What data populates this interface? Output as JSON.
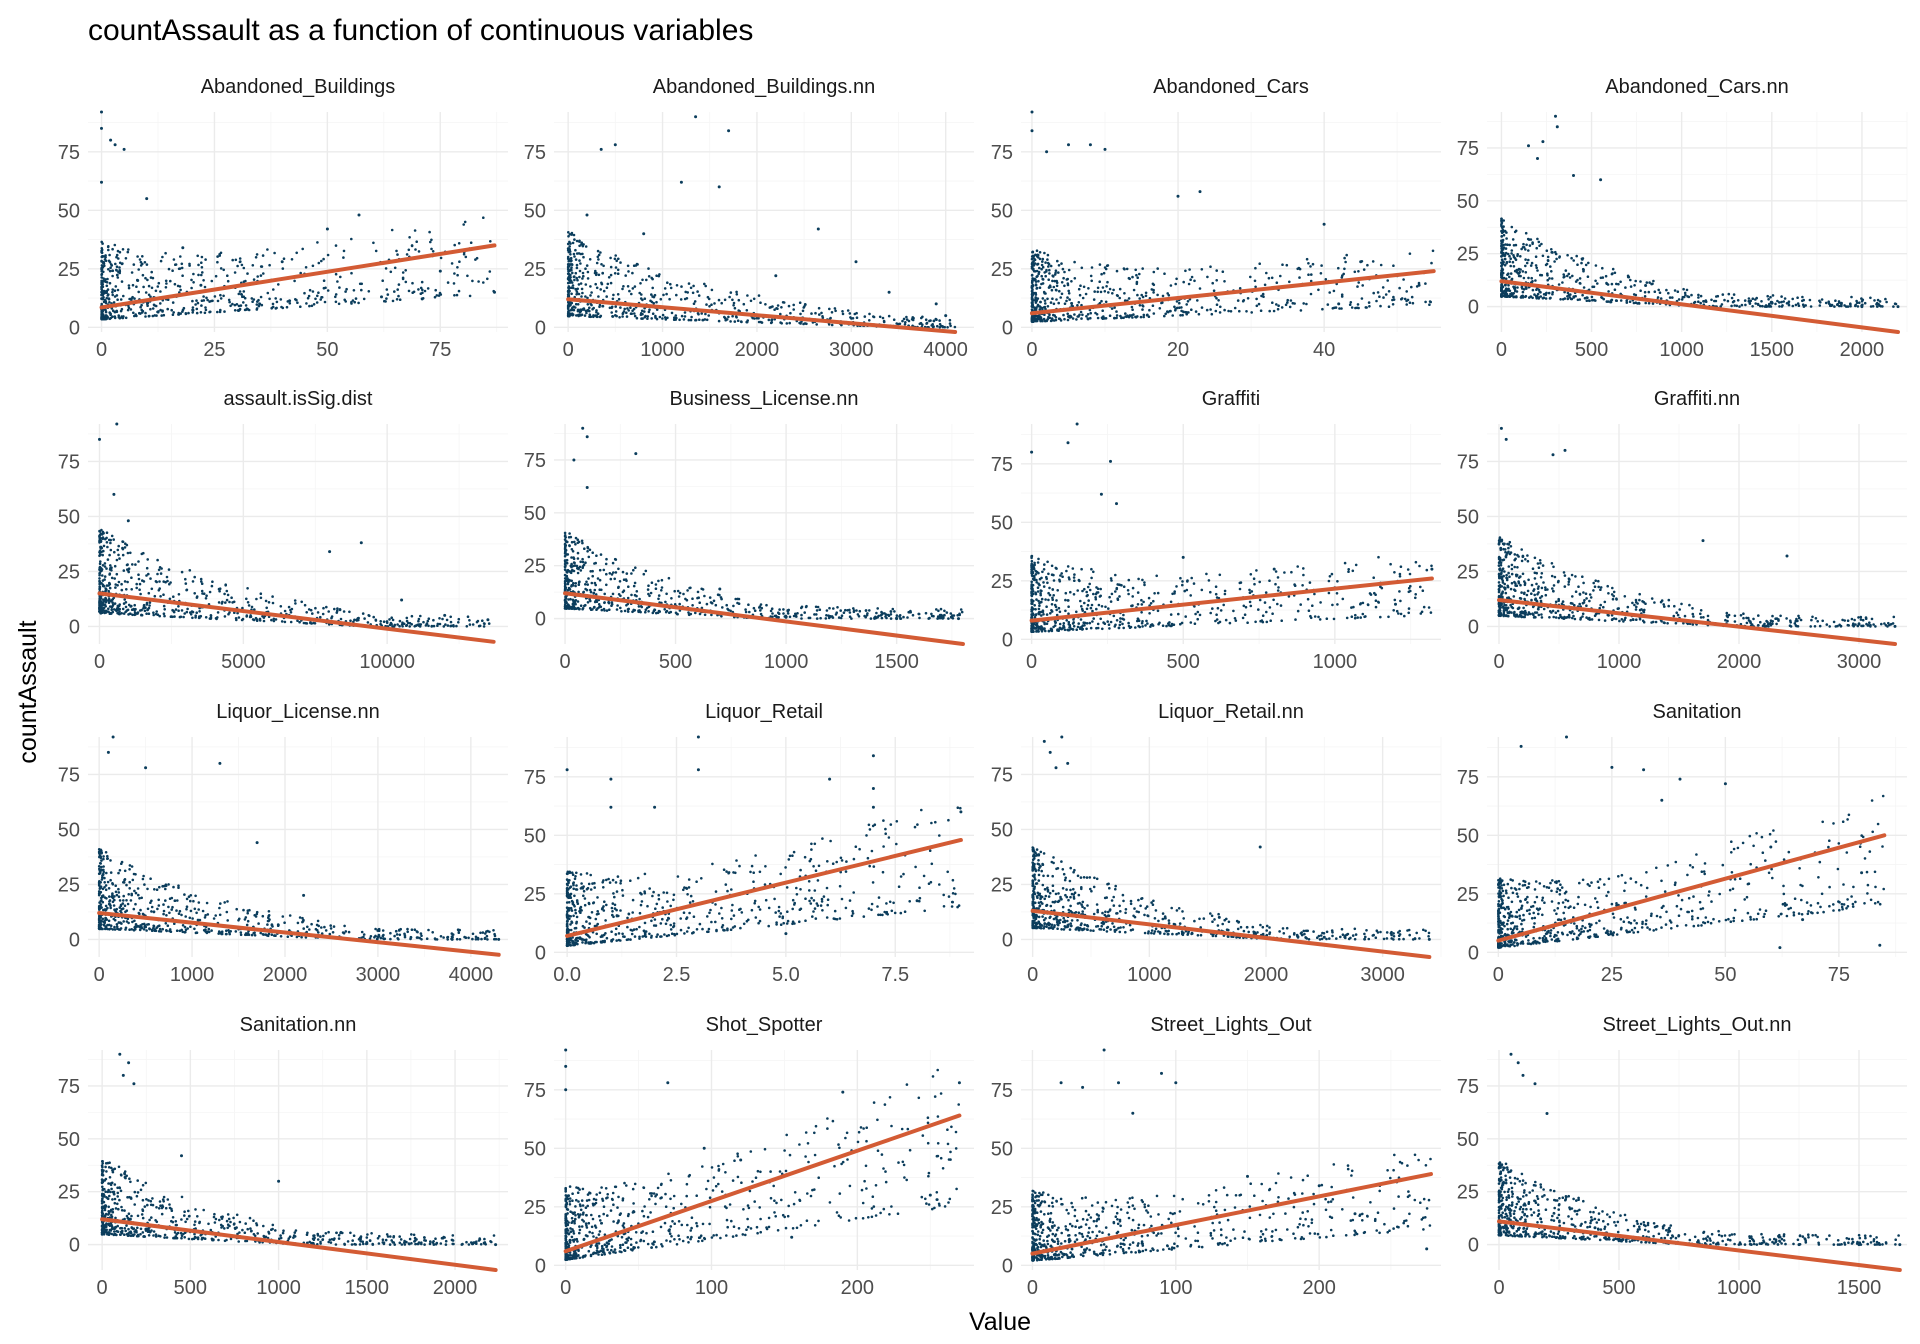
{
  "figure": {
    "title": "countAssault as a function of continuous variables",
    "xlabel": "Value",
    "ylabel": "countAssault"
  },
  "colors": {
    "point": "#0b3d5c",
    "fit_line": "#d35b34",
    "grid": "#ebebeb"
  },
  "chart_data": [
    {
      "type": "scatter",
      "title": "Abandoned_Buildings",
      "xlim": [
        -3,
        90
      ],
      "ylim": [
        -2,
        92
      ],
      "xticks": [
        0,
        25,
        50,
        75
      ],
      "yticks": [
        0,
        25,
        50,
        75
      ],
      "fit": {
        "x": [
          0,
          87
        ],
        "y": [
          8.5,
          35
        ]
      },
      "sample_points": [
        [
          0,
          92
        ],
        [
          0,
          85
        ],
        [
          0,
          62
        ],
        [
          2,
          80
        ],
        [
          3,
          78
        ],
        [
          5,
          76
        ],
        [
          10,
          55
        ],
        [
          18,
          34
        ],
        [
          40,
          28
        ],
        [
          57,
          48
        ],
        [
          50,
          42
        ],
        [
          75,
          24
        ],
        [
          87,
          15
        ],
        [
          62,
          13
        ],
        [
          8,
          20
        ],
        [
          22,
          18
        ],
        [
          35,
          10
        ],
        [
          1,
          5
        ]
      ]
    },
    {
      "type": "scatter",
      "title": "Abandoned_Buildings.nn",
      "xlim": [
        -150,
        4300
      ],
      "ylim": [
        -2,
        92
      ],
      "xticks": [
        0,
        1000,
        2000,
        3000,
        4000
      ],
      "yticks": [
        0,
        25,
        50,
        75
      ],
      "fit": {
        "x": [
          0,
          4100
        ],
        "y": [
          12,
          -2
        ]
      },
      "sample_points": [
        [
          1350,
          90
        ],
        [
          1700,
          84
        ],
        [
          500,
          78
        ],
        [
          350,
          76
        ],
        [
          1200,
          62
        ],
        [
          1600,
          60
        ],
        [
          2650,
          42
        ],
        [
          3050,
          28
        ],
        [
          3400,
          15
        ],
        [
          3900,
          10
        ],
        [
          4000,
          5
        ],
        [
          2200,
          22
        ],
        [
          800,
          40
        ],
        [
          200,
          48
        ]
      ]
    },
    {
      "type": "scatter",
      "title": "Abandoned_Cars",
      "xlim": [
        -1.5,
        56
      ],
      "ylim": [
        -2,
        92
      ],
      "xticks": [
        0,
        20,
        40
      ],
      "yticks": [
        0,
        25,
        50,
        75
      ],
      "fit": {
        "x": [
          0,
          55
        ],
        "y": [
          6,
          24
        ]
      },
      "sample_points": [
        [
          0,
          92
        ],
        [
          0,
          84
        ],
        [
          2,
          75
        ],
        [
          5,
          78
        ],
        [
          8,
          78
        ],
        [
          10,
          76
        ],
        [
          23,
          58
        ],
        [
          20,
          56
        ],
        [
          40,
          44
        ],
        [
          45,
          28
        ],
        [
          50,
          22
        ],
        [
          53,
          18
        ],
        [
          55,
          24
        ],
        [
          42,
          10
        ]
      ]
    },
    {
      "type": "scatter",
      "title": "Abandoned_Cars.nn",
      "xlim": [
        -80,
        2250
      ],
      "ylim": [
        -12,
        92
      ],
      "xticks": [
        0,
        500,
        1000,
        1500,
        2000
      ],
      "yticks": [
        0,
        25,
        50,
        75
      ],
      "fit": {
        "x": [
          0,
          2200
        ],
        "y": [
          12,
          -12
        ]
      },
      "sample_points": [
        [
          300,
          90
        ],
        [
          310,
          85
        ],
        [
          230,
          78
        ],
        [
          150,
          76
        ],
        [
          200,
          70
        ],
        [
          400,
          62
        ],
        [
          550,
          60
        ],
        [
          800,
          10
        ],
        [
          1500,
          2
        ],
        [
          2000,
          0
        ],
        [
          2200,
          0
        ]
      ]
    },
    {
      "type": "scatter",
      "title": "assault.isSig.dist",
      "xlim": [
        -400,
        14200
      ],
      "ylim": [
        -8,
        92
      ],
      "xticks": [
        0,
        5000,
        10000
      ],
      "yticks": [
        0,
        25,
        50,
        75
      ],
      "fit": {
        "x": [
          0,
          13700
        ],
        "y": [
          15,
          -7
        ]
      },
      "sample_points": [
        [
          0,
          85
        ],
        [
          600,
          92
        ],
        [
          500,
          60
        ],
        [
          1000,
          48
        ],
        [
          8000,
          34
        ],
        [
          9100,
          38
        ],
        [
          10500,
          12
        ],
        [
          12000,
          5
        ],
        [
          13500,
          3
        ]
      ]
    },
    {
      "type": "scatter",
      "title": "Business_License.nn",
      "xlim": [
        -50,
        1850
      ],
      "ylim": [
        -12,
        92
      ],
      "xticks": [
        0,
        500,
        1000,
        1500
      ],
      "yticks": [
        0,
        25,
        50,
        75
      ],
      "fit": {
        "x": [
          0,
          1800
        ],
        "y": [
          12,
          -12
        ]
      },
      "sample_points": [
        [
          80,
          90
        ],
        [
          100,
          86
        ],
        [
          40,
          75
        ],
        [
          320,
          78
        ],
        [
          100,
          62
        ],
        [
          700,
          14
        ],
        [
          1200,
          1
        ],
        [
          1500,
          0
        ],
        [
          1780,
          0
        ]
      ]
    },
    {
      "type": "scatter",
      "title": "Graffiti",
      "xlim": [
        -35,
        1350
      ],
      "ylim": [
        -2,
        92
      ],
      "xticks": [
        0,
        500,
        1000
      ],
      "yticks": [
        0,
        25,
        50,
        75
      ],
      "fit": {
        "x": [
          0,
          1320
        ],
        "y": [
          8,
          26
        ]
      },
      "sample_points": [
        [
          0,
          80
        ],
        [
          150,
          92
        ],
        [
          120,
          84
        ],
        [
          260,
          76
        ],
        [
          230,
          62
        ],
        [
          280,
          58
        ],
        [
          500,
          35
        ],
        [
          800,
          30
        ],
        [
          1000,
          22
        ],
        [
          1200,
          15
        ],
        [
          1320,
          30
        ]
      ]
    },
    {
      "type": "scatter",
      "title": "Graffiti.nn",
      "xlim": [
        -100,
        3400
      ],
      "ylim": [
        -8,
        92
      ],
      "xticks": [
        0,
        1000,
        2000,
        3000
      ],
      "yticks": [
        0,
        25,
        50,
        75
      ],
      "fit": {
        "x": [
          0,
          3300
        ],
        "y": [
          12,
          -8
        ]
      },
      "sample_points": [
        [
          20,
          90
        ],
        [
          60,
          85
        ],
        [
          450,
          78
        ],
        [
          550,
          80
        ],
        [
          1700,
          39
        ],
        [
          2400,
          32
        ],
        [
          3000,
          1
        ],
        [
          3300,
          0
        ]
      ]
    },
    {
      "type": "scatter",
      "title": "Liquor_License.nn",
      "xlim": [
        -120,
        4400
      ],
      "ylim": [
        -8,
        92
      ],
      "xticks": [
        0,
        1000,
        2000,
        3000,
        4000
      ],
      "yticks": [
        0,
        25,
        50,
        75
      ],
      "fit": {
        "x": [
          0,
          4300
        ],
        "y": [
          12,
          -7
        ]
      },
      "sample_points": [
        [
          150,
          92
        ],
        [
          100,
          85
        ],
        [
          500,
          78
        ],
        [
          1300,
          80
        ],
        [
          1700,
          44
        ],
        [
          2200,
          20
        ],
        [
          3000,
          1
        ],
        [
          3800,
          0
        ],
        [
          4300,
          0
        ]
      ]
    },
    {
      "type": "scatter",
      "title": "Liquor_Retail",
      "xlim": [
        -0.3,
        9.3
      ],
      "ylim": [
        -2,
        92
      ],
      "xticks": [
        0.0,
        2.5,
        5.0,
        7.5
      ],
      "yticks": [
        0,
        25,
        50,
        75
      ],
      "fit": {
        "x": [
          0,
          9
        ],
        "y": [
          7,
          48
        ]
      },
      "sample_points": [
        [
          0,
          78
        ],
        [
          1,
          74
        ],
        [
          1,
          62
        ],
        [
          2,
          62
        ],
        [
          3,
          92
        ],
        [
          3,
          78
        ],
        [
          6,
          74
        ],
        [
          7,
          84
        ],
        [
          7,
          70
        ],
        [
          7,
          62
        ],
        [
          9,
          60
        ],
        [
          8,
          22
        ],
        [
          5,
          8
        ]
      ]
    },
    {
      "type": "scatter",
      "title": "Liquor_Retail.nn",
      "xlim": [
        -100,
        3500
      ],
      "ylim": [
        -8,
        92
      ],
      "xticks": [
        0,
        1000,
        2000,
        3000
      ],
      "yticks": [
        0,
        25,
        50,
        75
      ],
      "fit": {
        "x": [
          0,
          3400
        ],
        "y": [
          13,
          -8
        ]
      },
      "sample_points": [
        [
          100,
          90
        ],
        [
          150,
          85
        ],
        [
          200,
          78
        ],
        [
          250,
          92
        ],
        [
          300,
          80
        ],
        [
          1600,
          10
        ],
        [
          1950,
          42
        ],
        [
          2500,
          1
        ],
        [
          3400,
          0
        ]
      ]
    },
    {
      "type": "scatter",
      "title": "Sanitation",
      "xlim": [
        -2.5,
        90
      ],
      "ylim": [
        -2,
        92
      ],
      "xticks": [
        0,
        25,
        50,
        75
      ],
      "yticks": [
        0,
        25,
        50,
        75
      ],
      "fit": {
        "x": [
          0,
          85
        ],
        "y": [
          5,
          50
        ]
      },
      "sample_points": [
        [
          5,
          88
        ],
        [
          15,
          92
        ],
        [
          25,
          79
        ],
        [
          32,
          78
        ],
        [
          40,
          74
        ],
        [
          50,
          72
        ],
        [
          36,
          65
        ],
        [
          60,
          45
        ],
        [
          80,
          34
        ],
        [
          67,
          14
        ],
        [
          84,
          3
        ],
        [
          62,
          2
        ]
      ]
    },
    {
      "type": "scatter",
      "title": "Sanitation.nn",
      "xlim": [
        -80,
        2300
      ],
      "ylim": [
        -12,
        92
      ],
      "xticks": [
        0,
        500,
        1000,
        1500,
        2000
      ],
      "yticks": [
        0,
        25,
        50,
        75
      ],
      "fit": {
        "x": [
          0,
          2230
        ],
        "y": [
          12,
          -12
        ]
      },
      "sample_points": [
        [
          100,
          90
        ],
        [
          150,
          86
        ],
        [
          120,
          80
        ],
        [
          180,
          76
        ],
        [
          450,
          42
        ],
        [
          1000,
          30
        ],
        [
          1500,
          1
        ],
        [
          2230,
          0
        ]
      ]
    },
    {
      "type": "scatter",
      "title": "Shot_Spotter",
      "xlim": [
        -8,
        280
      ],
      "ylim": [
        -2,
        92
      ],
      "xticks": [
        0,
        100,
        200
      ],
      "yticks": [
        0,
        25,
        50,
        75
      ],
      "fit": {
        "x": [
          0,
          270
        ],
        "y": [
          6,
          64
        ]
      },
      "sample_points": [
        [
          0,
          92
        ],
        [
          0,
          85
        ],
        [
          0,
          75
        ],
        [
          70,
          78
        ],
        [
          190,
          74
        ],
        [
          270,
          78
        ],
        [
          250,
          30
        ],
        [
          155,
          12
        ],
        [
          120,
          45
        ],
        [
          95,
          50
        ]
      ]
    },
    {
      "type": "scatter",
      "title": "Street_Lights_Out",
      "xlim": [
        -8,
        285
      ],
      "ylim": [
        -2,
        92
      ],
      "xticks": [
        0,
        100,
        200
      ],
      "yticks": [
        0,
        25,
        50,
        75
      ],
      "fit": {
        "x": [
          0,
          278
        ],
        "y": [
          5,
          39
        ]
      },
      "sample_points": [
        [
          50,
          92
        ],
        [
          90,
          82
        ],
        [
          20,
          78
        ],
        [
          60,
          78
        ],
        [
          35,
          76
        ],
        [
          100,
          78
        ],
        [
          70,
          65
        ],
        [
          150,
          38
        ],
        [
          200,
          34
        ],
        [
          225,
          22
        ],
        [
          275,
          7
        ]
      ]
    },
    {
      "type": "scatter",
      "title": "Street_Lights_Out.nn",
      "xlim": [
        -50,
        1700
      ],
      "ylim": [
        -12,
        92
      ],
      "xticks": [
        0,
        500,
        1000,
        1500
      ],
      "yticks": [
        0,
        25,
        50,
        75
      ],
      "fit": {
        "x": [
          0,
          1670
        ],
        "y": [
          11,
          -12
        ]
      },
      "sample_points": [
        [
          50,
          90
        ],
        [
          80,
          86
        ],
        [
          100,
          80
        ],
        [
          150,
          76
        ],
        [
          200,
          62
        ],
        [
          400,
          8
        ],
        [
          800,
          0
        ],
        [
          1250,
          0
        ],
        [
          1500,
          0
        ],
        [
          1670,
          0
        ]
      ]
    }
  ]
}
